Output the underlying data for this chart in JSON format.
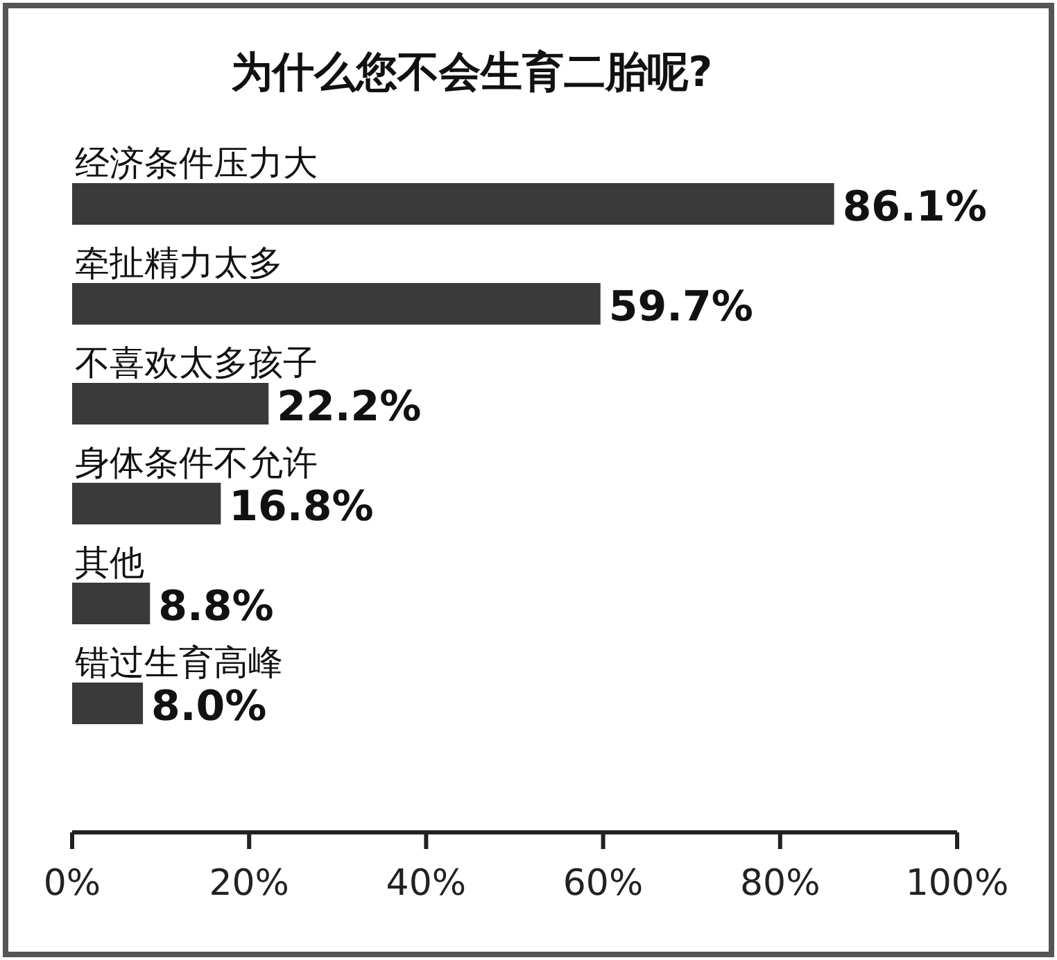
{
  "chart_data": {
    "type": "bar",
    "orientation": "horizontal",
    "title": "为什么您不会生育二胎呢?",
    "categories": [
      "经济条件压力大",
      "牵扯精力太多",
      "不喜欢太多孩子",
      "身体条件不允许",
      "其他",
      "错过生育高峰"
    ],
    "values": [
      86.1,
      59.7,
      22.2,
      16.8,
      8.8,
      8.0
    ],
    "value_labels": [
      "86.1%",
      "59.7%",
      "22.2%",
      "16.8%",
      "8.8%",
      "8.0%"
    ],
    "color": "#3a3a3a",
    "xlim": [
      0,
      100
    ],
    "xticks": [
      {
        "value": 0,
        "label": "0%"
      },
      {
        "value": 20,
        "label": "20%"
      },
      {
        "value": 40,
        "label": "40%"
      },
      {
        "value": 60,
        "label": "60%"
      },
      {
        "value": 80,
        "label": "80%"
      },
      {
        "value": 100,
        "label": "100%"
      }
    ]
  }
}
